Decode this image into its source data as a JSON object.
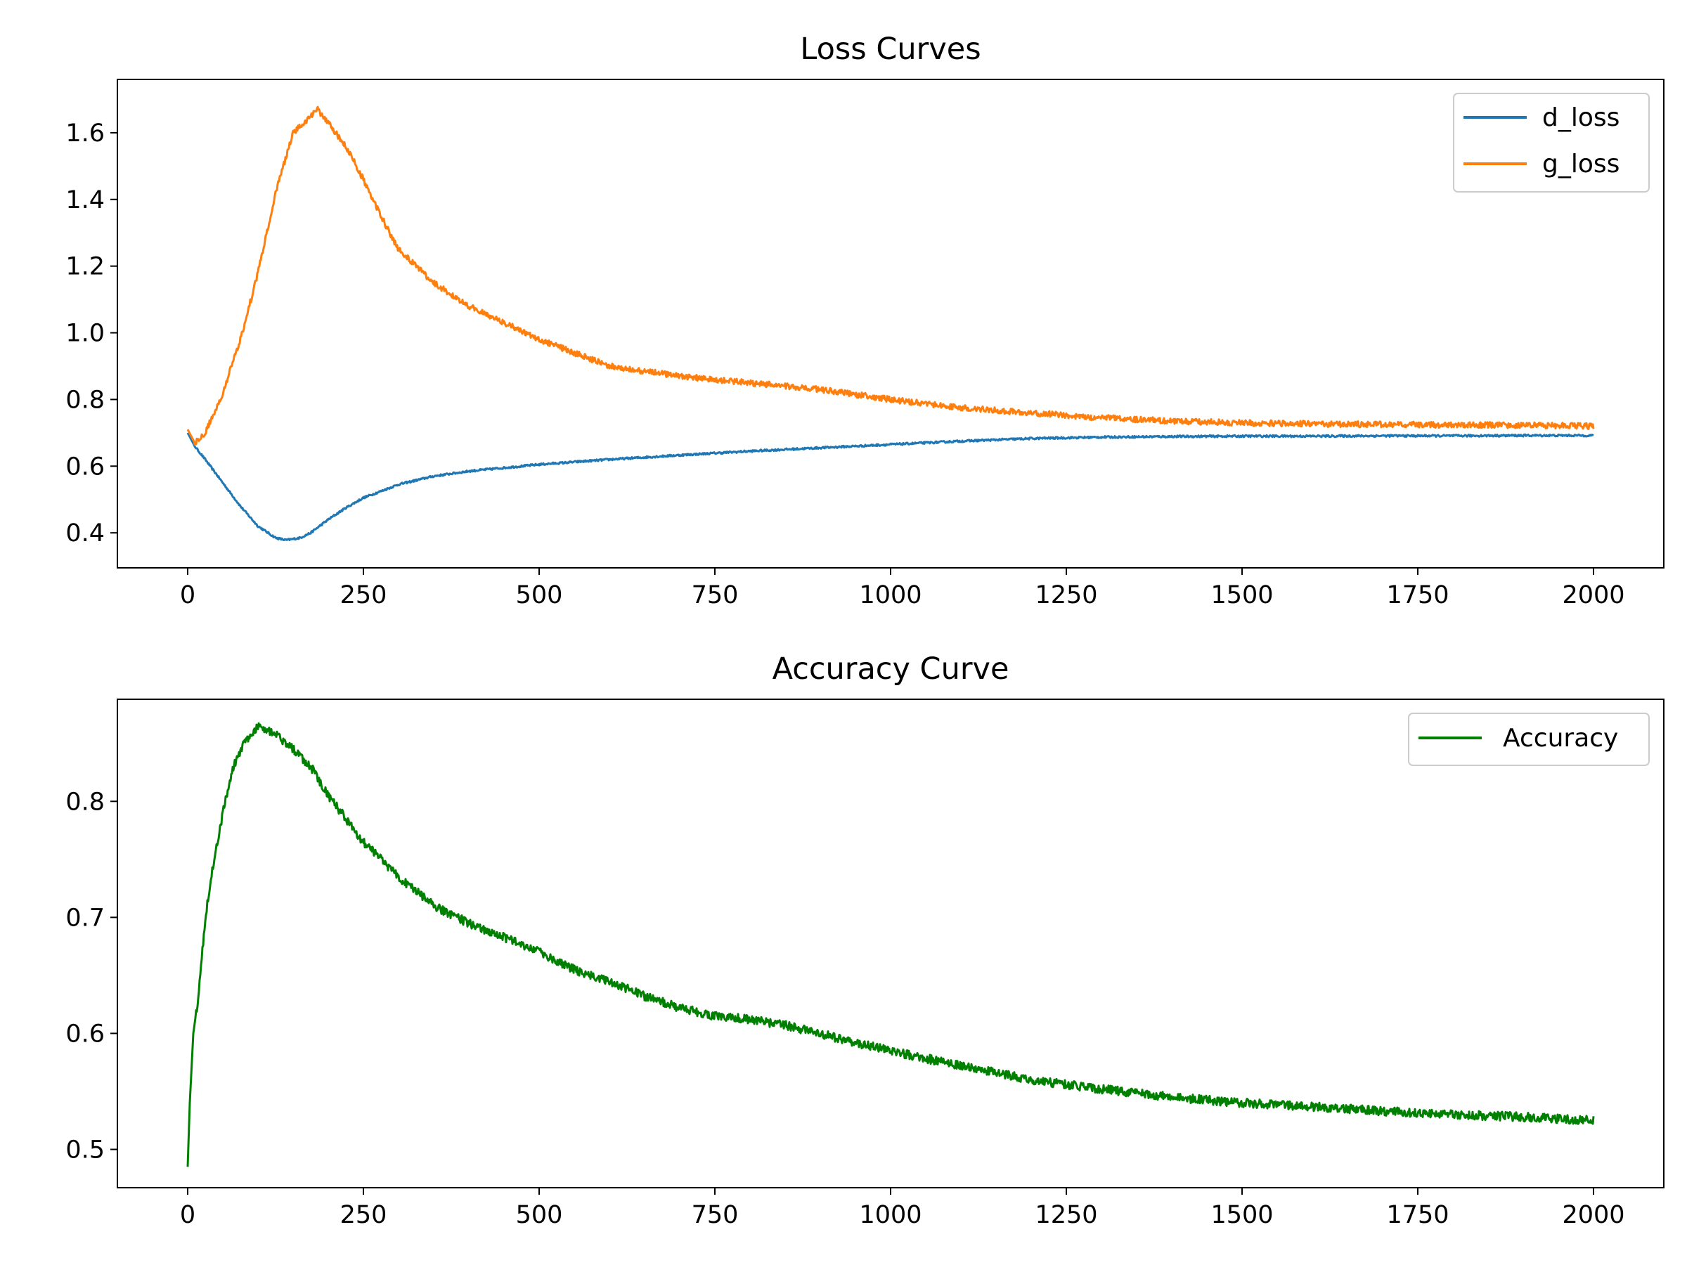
{
  "figure": {
    "background": "#ffffff",
    "axis_color": "#000000"
  },
  "chart_data": [
    {
      "type": "line",
      "title": "Loss Curves",
      "xlabel": "",
      "ylabel": "",
      "xlim": [
        -100,
        2100
      ],
      "ylim": [
        0.295,
        1.76
      ],
      "xticks": [
        0,
        250,
        500,
        750,
        1000,
        1250,
        1500,
        1750,
        2000
      ],
      "xtick_labels": [
        "0",
        "250",
        "500",
        "750",
        "1000",
        "1250",
        "1500",
        "1750",
        "2000"
      ],
      "yticks": [
        0.4,
        0.6,
        0.8,
        1.0,
        1.2,
        1.4,
        1.6
      ],
      "ytick_labels": [
        "0.4",
        "0.6",
        "0.8",
        "1.0",
        "1.2",
        "1.4",
        "1.6"
      ],
      "grid": false,
      "legend_position": "top-right",
      "series": [
        {
          "name": "d_loss",
          "color": "#1f77b4",
          "x": [
            0,
            10,
            25,
            50,
            75,
            100,
            125,
            140,
            160,
            175,
            200,
            225,
            250,
            300,
            350,
            400,
            450,
            500,
            600,
            700,
            800,
            900,
            1000,
            1100,
            1200,
            1300,
            1400,
            1500,
            1600,
            1700,
            1800,
            1900,
            2000
          ],
          "y": [
            0.7,
            0.66,
            0.62,
            0.55,
            0.48,
            0.42,
            0.385,
            0.378,
            0.385,
            0.4,
            0.44,
            0.475,
            0.505,
            0.545,
            0.57,
            0.585,
            0.595,
            0.605,
            0.62,
            0.633,
            0.645,
            0.655,
            0.665,
            0.675,
            0.683,
            0.687,
            0.689,
            0.69,
            0.69,
            0.691,
            0.691,
            0.692,
            0.692
          ]
        },
        {
          "name": "g_loss",
          "color": "#ff7f0e",
          "x": [
            0,
            10,
            25,
            50,
            75,
            100,
            125,
            150,
            175,
            185,
            200,
            225,
            250,
            275,
            300,
            350,
            400,
            450,
            500,
            550,
            600,
            700,
            800,
            900,
            1000,
            1100,
            1200,
            1300,
            1400,
            1500,
            1600,
            1700,
            1800,
            1900,
            2000
          ],
          "y": [
            0.71,
            0.67,
            0.7,
            0.82,
            0.98,
            1.18,
            1.42,
            1.6,
            1.65,
            1.67,
            1.63,
            1.56,
            1.46,
            1.35,
            1.25,
            1.15,
            1.08,
            1.03,
            0.98,
            0.94,
            0.9,
            0.87,
            0.85,
            0.83,
            0.8,
            0.775,
            0.76,
            0.745,
            0.735,
            0.73,
            0.727,
            0.725,
            0.724,
            0.723,
            0.72
          ]
        }
      ]
    },
    {
      "type": "line",
      "title": "Accuracy Curve",
      "xlabel": "",
      "ylabel": "",
      "xlim": [
        -100,
        2100
      ],
      "ylim": [
        0.467,
        0.888
      ],
      "xticks": [
        0,
        250,
        500,
        750,
        1000,
        1250,
        1500,
        1750,
        2000
      ],
      "xtick_labels": [
        "0",
        "250",
        "500",
        "750",
        "1000",
        "1250",
        "1500",
        "1750",
        "2000"
      ],
      "yticks": [
        0.5,
        0.6,
        0.7,
        0.8
      ],
      "ytick_labels": [
        "0.5",
        "0.6",
        "0.7",
        "0.8"
      ],
      "grid": false,
      "legend_position": "top-right",
      "series": [
        {
          "name": "Accuracy",
          "color": "#008000",
          "x": [
            0,
            3,
            8,
            15,
            25,
            35,
            50,
            65,
            80,
            100,
            120,
            150,
            175,
            200,
            250,
            300,
            350,
            400,
            450,
            500,
            550,
            600,
            650,
            700,
            750,
            800,
            850,
            900,
            950,
            1000,
            1100,
            1200,
            1300,
            1400,
            1500,
            1600,
            1700,
            1800,
            1900,
            2000
          ],
          "y": [
            0.485,
            0.54,
            0.6,
            0.63,
            0.7,
            0.74,
            0.79,
            0.83,
            0.85,
            0.865,
            0.86,
            0.845,
            0.83,
            0.805,
            0.765,
            0.735,
            0.71,
            0.695,
            0.683,
            0.67,
            0.655,
            0.645,
            0.632,
            0.622,
            0.615,
            0.612,
            0.607,
            0.6,
            0.592,
            0.585,
            0.572,
            0.56,
            0.552,
            0.545,
            0.54,
            0.537,
            0.533,
            0.53,
            0.528,
            0.525
          ]
        }
      ]
    }
  ]
}
